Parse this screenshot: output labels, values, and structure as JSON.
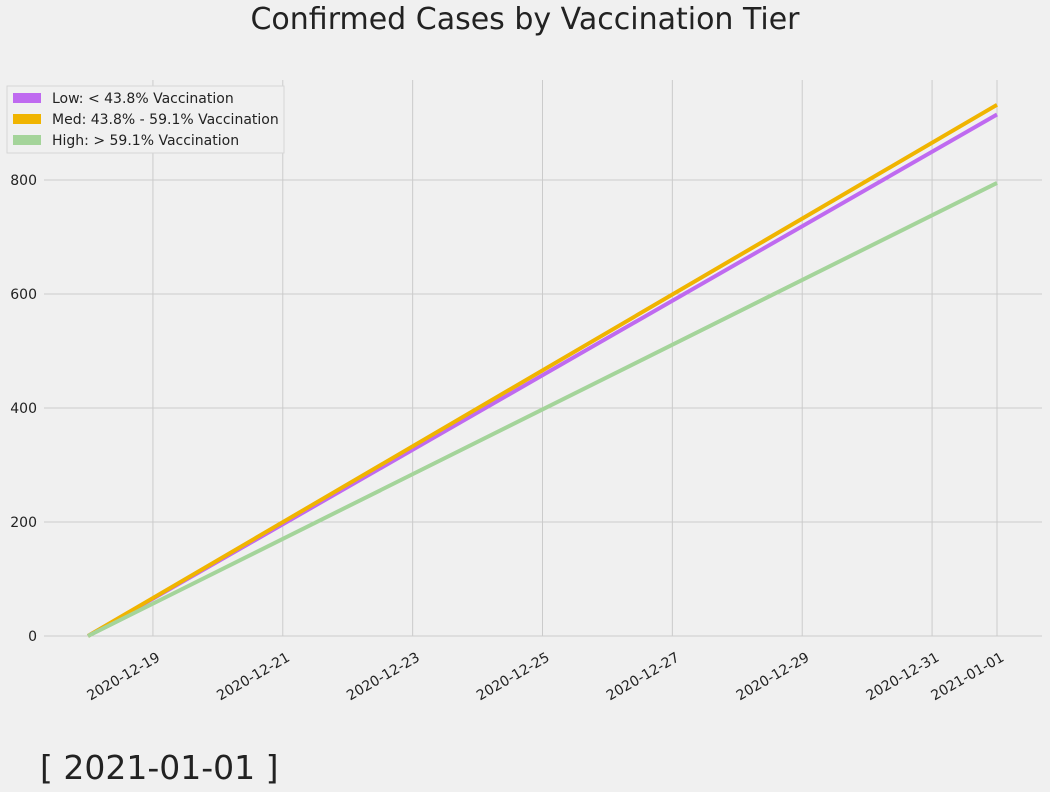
{
  "date_stamp": "[ 2021-01-01 ]",
  "chart_data": {
    "type": "line",
    "title": "Confirmed Cases by Vaccination Tier",
    "xlabel": "",
    "ylabel": "",
    "x": [
      "2020-12-18",
      "2021-01-01"
    ],
    "xticks": [
      "2020-12-19",
      "2020-12-21",
      "2020-12-23",
      "2020-12-25",
      "2020-12-27",
      "2020-12-29",
      "2020-12-31",
      "2021-01-01"
    ],
    "yticks": [
      0,
      200,
      400,
      600,
      800
    ],
    "xlim": [
      "2020-12-17",
      "2021-01-01"
    ],
    "ylim": [
      -10,
      975
    ],
    "grid": true,
    "legend_position": "top-left",
    "series": [
      {
        "name": "Low: < 43.8% Vaccination",
        "color": "#bf6af0",
        "values": [
          0,
          915
        ]
      },
      {
        "name": "Med: 43.8% - 59.1% Vaccination",
        "color": "#f0b400",
        "values": [
          0,
          932
        ]
      },
      {
        "name": "High: > 59.1%  Vaccination",
        "color": "#a4d49a",
        "values": [
          0,
          795
        ]
      }
    ]
  }
}
